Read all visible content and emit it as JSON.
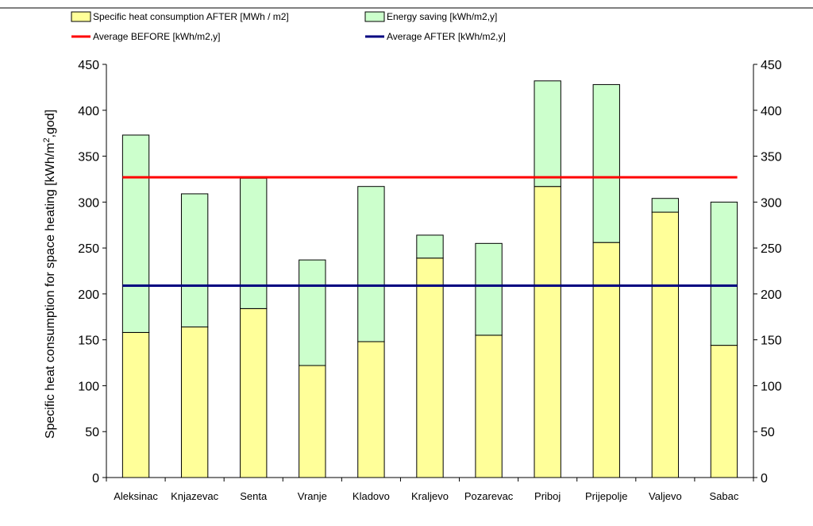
{
  "chart_data": {
    "type": "bar",
    "stacked": true,
    "categories": [
      "Aleksinac",
      "Knjazevac",
      "Senta",
      "Vranje",
      "Kladovo",
      "Kraljevo",
      "Pozarevac",
      "Priboj",
      "Prijepolje",
      "Valjevo",
      "Sabac"
    ],
    "series": [
      {
        "name": "Specific heat consumption AFTER [MWh / m2]",
        "kind": "bar",
        "color": "#ffff99",
        "values": [
          158,
          164,
          184,
          122,
          148,
          239,
          155,
          317,
          256,
          289,
          144
        ]
      },
      {
        "name": "Energy saving [kWh/m2,y]",
        "kind": "bar",
        "color": "#ccffcc",
        "values": [
          215,
          145,
          142,
          115,
          169,
          25,
          100,
          115,
          172,
          15,
          156
        ]
      },
      {
        "name": "Average BEFORE [kWh/m2,y]",
        "kind": "line",
        "color": "#ff0000",
        "values": [
          327,
          327,
          327,
          327,
          327,
          327,
          327,
          327,
          327,
          327,
          327
        ]
      },
      {
        "name": "Average AFTER [kWh/m2,y]",
        "kind": "line",
        "color": "#000080",
        "values": [
          209,
          209,
          209,
          209,
          209,
          209,
          209,
          209,
          209,
          209,
          209
        ]
      }
    ],
    "ylabel_main": "Specific heat consumption for space heating [kWh/m",
    "ylabel_sup": "2",
    "ylabel_tail": ",god]",
    "ylim": [
      0,
      450
    ],
    "yticks": [
      "0",
      "50",
      "100",
      "150",
      "200",
      "250",
      "300",
      "350",
      "400",
      "450"
    ],
    "secondary_yticks": [
      "0",
      "50",
      "100",
      "150",
      "200",
      "250",
      "300",
      "350",
      "400",
      "450"
    ],
    "grid": false,
    "legend_position": "top"
  }
}
